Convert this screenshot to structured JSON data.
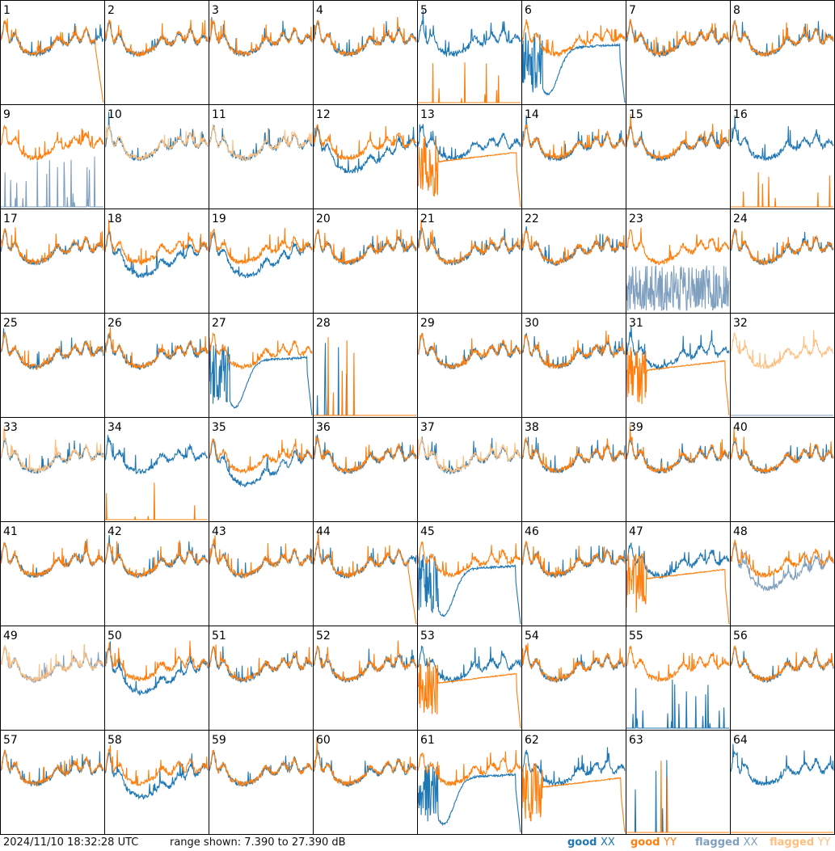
{
  "timestamp": "2024/11/10 18:32:28 UTC",
  "range_text": "range shown: 7.390 to 27.390 dB",
  "colors": {
    "good_xx": "#1f77b4",
    "good_yy": "#ff7f0e",
    "flagged_xx": "#7f9fbf",
    "flagged_yy": "#ffbf7f",
    "grid": "#000000"
  },
  "legend": [
    {
      "label_a": "good ",
      "label_b": "XX",
      "color": "#1f77b4"
    },
    {
      "label_a": "good ",
      "label_b": "YY",
      "color": "#ff7f0e"
    },
    {
      "label_a": "flagged ",
      "label_b": "XX",
      "color": "#7f9fbf"
    },
    {
      "label_a": "flagged ",
      "label_b": "YY",
      "color": "#ffbf7f"
    }
  ],
  "chart_data": {
    "type": "line",
    "layout": "grid 8x8 small multiples",
    "ylim_db": [
      7.39,
      27.39
    ],
    "panels": [
      {
        "id": "1",
        "xx": "good",
        "yy": "good",
        "profile": "rolloff_yy"
      },
      {
        "id": "2",
        "xx": "good",
        "yy": "good",
        "profile": "normal"
      },
      {
        "id": "3",
        "xx": "good",
        "yy": "good",
        "profile": "normal"
      },
      {
        "id": "4",
        "xx": "good",
        "yy": "good",
        "profile": "normal"
      },
      {
        "id": "5",
        "xx": "good",
        "yy": "good",
        "profile": "yy_dead"
      },
      {
        "id": "6",
        "xx": "good",
        "yy": "good",
        "profile": "xx_dip"
      },
      {
        "id": "7",
        "xx": "good",
        "yy": "good",
        "profile": "normal"
      },
      {
        "id": "8",
        "xx": "good",
        "yy": "good",
        "profile": "normal"
      },
      {
        "id": "9",
        "xx": "flagged",
        "yy": "good",
        "profile": "xx_spikes"
      },
      {
        "id": "10",
        "xx": "good",
        "yy": "flagged",
        "profile": "normal"
      },
      {
        "id": "11",
        "xx": "good",
        "yy": "flagged",
        "profile": "normal"
      },
      {
        "id": "12",
        "xx": "good",
        "yy": "good",
        "profile": "xx_low"
      },
      {
        "id": "13",
        "xx": "good",
        "yy": "good",
        "profile": "yy_low"
      },
      {
        "id": "14",
        "xx": "good",
        "yy": "good",
        "profile": "normal"
      },
      {
        "id": "15",
        "xx": "good",
        "yy": "good",
        "profile": "normal"
      },
      {
        "id": "16",
        "xx": "good",
        "yy": "good",
        "profile": "yy_dead"
      },
      {
        "id": "17",
        "xx": "good",
        "yy": "good",
        "profile": "normal"
      },
      {
        "id": "18",
        "xx": "good",
        "yy": "good",
        "profile": "xx_low"
      },
      {
        "id": "19",
        "xx": "good",
        "yy": "good",
        "profile": "xx_low"
      },
      {
        "id": "20",
        "xx": "good",
        "yy": "good",
        "profile": "normal"
      },
      {
        "id": "21",
        "xx": "good",
        "yy": "good",
        "profile": "normal"
      },
      {
        "id": "22",
        "xx": "good",
        "yy": "good",
        "profile": "normal"
      },
      {
        "id": "23",
        "xx": "flagged",
        "yy": "good",
        "profile": "xx_noise"
      },
      {
        "id": "24",
        "xx": "good",
        "yy": "good",
        "profile": "normal"
      },
      {
        "id": "25",
        "xx": "good",
        "yy": "good",
        "profile": "normal"
      },
      {
        "id": "26",
        "xx": "good",
        "yy": "good",
        "profile": "normal"
      },
      {
        "id": "27",
        "xx": "good",
        "yy": "good",
        "profile": "xx_dip"
      },
      {
        "id": "28",
        "xx": "good",
        "yy": "good",
        "profile": "dead_both"
      },
      {
        "id": "29",
        "xx": "good",
        "yy": "good",
        "profile": "normal"
      },
      {
        "id": "30",
        "xx": "good",
        "yy": "good",
        "profile": "normal"
      },
      {
        "id": "31",
        "xx": "good",
        "yy": "good",
        "profile": "yy_low"
      },
      {
        "id": "32",
        "xx": "flagged",
        "yy": "flagged",
        "profile": "yy_only"
      },
      {
        "id": "33",
        "xx": "good",
        "yy": "flagged",
        "profile": "normal"
      },
      {
        "id": "34",
        "xx": "good",
        "yy": "good",
        "profile": "yy_dead"
      },
      {
        "id": "35",
        "xx": "good",
        "yy": "good",
        "profile": "xx_low"
      },
      {
        "id": "36",
        "xx": "good",
        "yy": "good",
        "profile": "normal"
      },
      {
        "id": "37",
        "xx": "good",
        "yy": "flagged",
        "profile": "normal"
      },
      {
        "id": "38",
        "xx": "good",
        "yy": "good",
        "profile": "normal"
      },
      {
        "id": "39",
        "xx": "good",
        "yy": "good",
        "profile": "normal"
      },
      {
        "id": "40",
        "xx": "good",
        "yy": "good",
        "profile": "normal"
      },
      {
        "id": "41",
        "xx": "good",
        "yy": "good",
        "profile": "normal"
      },
      {
        "id": "42",
        "xx": "good",
        "yy": "good",
        "profile": "normal"
      },
      {
        "id": "43",
        "xx": "good",
        "yy": "good",
        "profile": "normal"
      },
      {
        "id": "44",
        "xx": "good",
        "yy": "good",
        "profile": "rolloff_yy"
      },
      {
        "id": "45",
        "xx": "good",
        "yy": "good",
        "profile": "xx_dip"
      },
      {
        "id": "46",
        "xx": "good",
        "yy": "good",
        "profile": "normal"
      },
      {
        "id": "47",
        "xx": "good",
        "yy": "good",
        "profile": "yy_low"
      },
      {
        "id": "48",
        "xx": "flagged",
        "yy": "good",
        "profile": "xx_low"
      },
      {
        "id": "49",
        "xx": "flagged",
        "yy": "flagged",
        "profile": "normal"
      },
      {
        "id": "50",
        "xx": "good",
        "yy": "good",
        "profile": "xx_low"
      },
      {
        "id": "51",
        "xx": "good",
        "yy": "good",
        "profile": "normal"
      },
      {
        "id": "52",
        "xx": "good",
        "yy": "good",
        "profile": "normal"
      },
      {
        "id": "53",
        "xx": "good",
        "yy": "good",
        "profile": "yy_low"
      },
      {
        "id": "54",
        "xx": "good",
        "yy": "good",
        "profile": "normal"
      },
      {
        "id": "55",
        "xx": "good",
        "yy": "good",
        "profile": "xx_spikes"
      },
      {
        "id": "56",
        "xx": "good",
        "yy": "good",
        "profile": "normal"
      },
      {
        "id": "57",
        "xx": "good",
        "yy": "good",
        "profile": "normal"
      },
      {
        "id": "58",
        "xx": "good",
        "yy": "good",
        "profile": "xx_low"
      },
      {
        "id": "59",
        "xx": "good",
        "yy": "good",
        "profile": "normal"
      },
      {
        "id": "60",
        "xx": "good",
        "yy": "good",
        "profile": "normal"
      },
      {
        "id": "61",
        "xx": "good",
        "yy": "good",
        "profile": "xx_dip"
      },
      {
        "id": "62",
        "xx": "good",
        "yy": "good",
        "profile": "yy_low"
      },
      {
        "id": "63",
        "xx": "good",
        "yy": "good",
        "profile": "dead_both"
      },
      {
        "id": "64",
        "xx": "good",
        "yy": "good",
        "profile": "xx_only"
      }
    ]
  }
}
